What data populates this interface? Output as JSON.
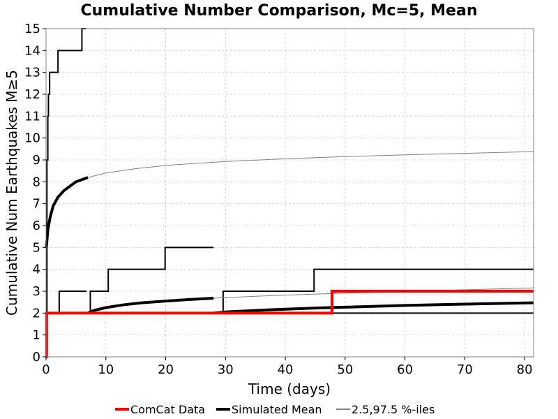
{
  "chart_data": {
    "type": "line",
    "title": "Cumulative Number Comparison, Mc=5, Mean",
    "xlabel": "Time (days)",
    "ylabel": "Cumulative Num Earthquakes M≥5",
    "xlim": [
      0,
      81.5
    ],
    "ylim": [
      0,
      15
    ],
    "xticks": [
      0,
      10,
      20,
      30,
      40,
      50,
      60,
      70,
      80
    ],
    "yticks": [
      0,
      1,
      2,
      3,
      4,
      5,
      6,
      7,
      8,
      9,
      10,
      11,
      12,
      13,
      14,
      15
    ],
    "grid": true,
    "legend_position": "bottom",
    "legend": [
      {
        "label": "ComCat Data",
        "color": "#ff0000"
      },
      {
        "label": "Simulated Mean",
        "color": "#000000"
      },
      {
        "label": "2.5,97.5 %-iles",
        "color": "#000000"
      }
    ],
    "series": [
      {
        "name": "ComCat Data",
        "color": "#ff0000",
        "style": "step",
        "x": [
          0,
          0.1,
          47.8,
          81.5
        ],
        "y": [
          0,
          2,
          3,
          3
        ]
      },
      {
        "style": "step",
        "color": "#000000",
        "x": [
          0,
          0.15,
          0.3,
          0.4,
          0.6,
          0.8,
          2.0,
          5.8,
          6.0,
          6.7
        ],
        "y": [
          0,
          9,
          11,
          12,
          13,
          13,
          14,
          14,
          15,
          15
        ]
      },
      {
        "style": "curve",
        "color": "#000000",
        "x": [
          0.05,
          0.3,
          0.7,
          1.2,
          2,
          3,
          4,
          5,
          6,
          7
        ],
        "y": [
          5.0,
          5.8,
          6.4,
          6.9,
          7.3,
          7.6,
          7.8,
          8.0,
          8.1,
          8.2
        ]
      },
      {
        "style": "curve",
        "color": "#808080",
        "x": [
          7,
          10,
          15,
          20,
          30,
          40,
          50,
          60,
          70,
          81.5
        ],
        "y": [
          8.2,
          8.4,
          8.6,
          8.75,
          8.93,
          9.05,
          9.15,
          9.23,
          9.3,
          9.38
        ]
      },
      {
        "style": "step",
        "color": "#000000",
        "x": [
          0,
          0.1,
          2.2,
          6.8
        ],
        "y": [
          0,
          2,
          3,
          3
        ]
      },
      {
        "style": "step",
        "color": "#000000",
        "x": [
          7.1,
          7.4,
          10.4,
          19.9,
          28.0
        ],
        "y": [
          2,
          3,
          4,
          5,
          5
        ]
      },
      {
        "style": "step",
        "color": "#000000",
        "x": [
          28.0,
          29.6,
          44.8,
          81.5
        ],
        "y": [
          2,
          3,
          4,
          4
        ]
      },
      {
        "style": "step",
        "color": "#000000",
        "x": [
          7.0,
          81.5
        ],
        "y": [
          2,
          2
        ]
      },
      {
        "style": "curve",
        "color": "#000000",
        "x": [
          7,
          8,
          10,
          13,
          16,
          20,
          24,
          28
        ],
        "y": [
          2.0,
          2.12,
          2.25,
          2.38,
          2.47,
          2.55,
          2.62,
          2.68
        ]
      },
      {
        "style": "curve",
        "color": "#000000",
        "x": [
          28,
          30,
          35,
          40,
          45,
          50,
          60,
          70,
          81.5
        ],
        "y": [
          2.0,
          2.05,
          2.12,
          2.18,
          2.23,
          2.27,
          2.35,
          2.41,
          2.47
        ]
      },
      {
        "style": "curve",
        "color": "#808080",
        "x": [
          28,
          35,
          45,
          55,
          65,
          81.5
        ],
        "y": [
          2.68,
          2.77,
          2.87,
          2.95,
          3.03,
          3.15
        ]
      }
    ]
  }
}
